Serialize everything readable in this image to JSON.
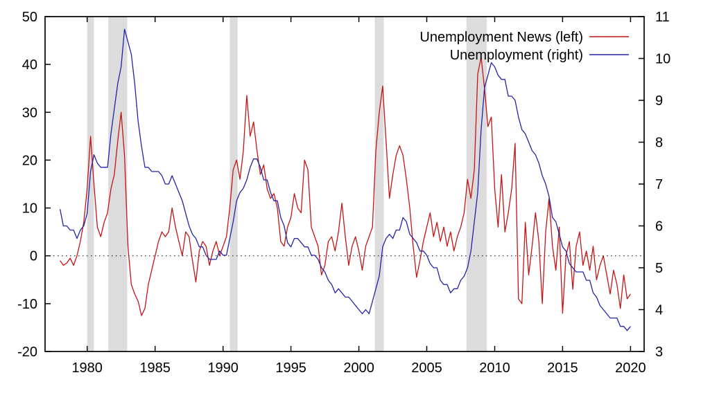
{
  "window": {
    "background": "#ffffff"
  },
  "chart_data": {
    "type": "line",
    "title": "",
    "xlabel": "",
    "ylabel_left": "",
    "ylabel_right": "",
    "grid": false,
    "x_axis": {
      "min": 1976.9,
      "max": 2021.0,
      "ticks": [
        1980,
        1985,
        1990,
        1995,
        2000,
        2005,
        2010,
        2015,
        2020
      ]
    },
    "y_left": {
      "min": -20,
      "max": 50,
      "ticks": [
        -20,
        -10,
        0,
        10,
        20,
        30,
        40,
        50
      ],
      "zero_reference_line": 0
    },
    "y_right": {
      "min": 3,
      "max": 11,
      "ticks": [
        3,
        4,
        5,
        6,
        7,
        8,
        9,
        10,
        11
      ]
    },
    "recession_bands": {
      "color": "#dcdcdc",
      "ranges": [
        [
          1980.0,
          1980.5
        ],
        [
          1981.55,
          1982.95
        ],
        [
          1990.5,
          1991.08
        ],
        [
          2001.17,
          2001.83
        ],
        [
          2007.92,
          2009.42
        ]
      ]
    },
    "x_start": 1978.0,
    "x_step": 0.25,
    "legend": {
      "position": "top-right"
    },
    "series": [
      {
        "name": "Unemployment News (left)",
        "axis": "left",
        "color": "#c41414",
        "values": [
          -1,
          -2,
          -1.5,
          -0.5,
          -2,
          0,
          3,
          7,
          14,
          25,
          15,
          6,
          4,
          7,
          9,
          14,
          17,
          24,
          30,
          21,
          2,
          -6,
          -8,
          -9.5,
          -12.5,
          -11,
          -6,
          -3,
          0,
          3,
          5,
          4,
          5,
          10,
          6,
          3,
          0,
          5,
          4,
          -1,
          -5.5,
          1,
          3,
          2,
          -2,
          1,
          3,
          0,
          2,
          4,
          10,
          18,
          20,
          16,
          22,
          33.5,
          25,
          28,
          22,
          17,
          19,
          14,
          12,
          13,
          10,
          3,
          2,
          6,
          8,
          13,
          10,
          9,
          20,
          18,
          6,
          4,
          2,
          -4,
          -2,
          3,
          4,
          1,
          5,
          11,
          4,
          -2,
          2,
          4,
          1,
          -3,
          2,
          4,
          6,
          22,
          30,
          35.5,
          24,
          12,
          17,
          21,
          23,
          21,
          16,
          10,
          2,
          -4.5,
          -1,
          3,
          6,
          9,
          4,
          7,
          3,
          6,
          2,
          5,
          1,
          4,
          6,
          9,
          16,
          12,
          18,
          38,
          41.5,
          35,
          27,
          29,
          14,
          6,
          17,
          5,
          9,
          14,
          23.5,
          -9,
          -10,
          7,
          -4,
          2,
          9,
          3,
          -10,
          5,
          12,
          2,
          -3,
          6,
          -12,
          0,
          3,
          -7,
          2,
          5,
          -2,
          1,
          -3,
          2,
          -5,
          -2,
          0,
          -4,
          -8,
          -3,
          -6,
          -11,
          -4,
          -9,
          -8
        ]
      },
      {
        "name": "Unemployment (right)",
        "axis": "right",
        "color": "#2222aa",
        "values": [
          6.4,
          6.0,
          6.0,
          5.9,
          5.9,
          5.7,
          5.9,
          6.0,
          6.3,
          7.3,
          7.7,
          7.5,
          7.4,
          7.4,
          7.4,
          8.2,
          8.8,
          9.4,
          9.8,
          10.7,
          10.4,
          10.1,
          9.4,
          8.5,
          7.9,
          7.4,
          7.4,
          7.3,
          7.3,
          7.3,
          7.2,
          7.0,
          7.0,
          7.2,
          7.0,
          6.8,
          6.6,
          6.3,
          6.0,
          5.8,
          5.7,
          5.5,
          5.5,
          5.3,
          5.2,
          5.2,
          5.2,
          5.4,
          5.3,
          5.3,
          5.7,
          6.1,
          6.6,
          6.8,
          6.9,
          7.1,
          7.4,
          7.6,
          7.6,
          7.4,
          7.1,
          7.1,
          6.8,
          6.6,
          6.6,
          6.2,
          6.0,
          5.6,
          5.5,
          5.7,
          5.7,
          5.6,
          5.5,
          5.5,
          5.3,
          5.3,
          5.2,
          5.0,
          4.9,
          4.7,
          4.6,
          4.4,
          4.5,
          4.4,
          4.3,
          4.3,
          4.2,
          4.1,
          4.0,
          3.9,
          4.0,
          3.9,
          4.2,
          4.5,
          4.8,
          5.5,
          5.7,
          5.8,
          5.7,
          5.9,
          5.9,
          6.2,
          6.1,
          5.8,
          5.7,
          5.6,
          5.4,
          5.4,
          5.3,
          5.1,
          5.0,
          5.0,
          4.7,
          4.6,
          4.6,
          4.4,
          4.5,
          4.5,
          4.7,
          4.8,
          5.0,
          5.4,
          6.1,
          6.8,
          8.3,
          9.3,
          9.6,
          9.9,
          9.8,
          9.6,
          9.5,
          9.5,
          9.1,
          9.1,
          9.0,
          8.6,
          8.3,
          8.2,
          8.0,
          7.8,
          7.7,
          7.5,
          7.2,
          7.0,
          6.7,
          6.2,
          6.1,
          5.8,
          5.5,
          5.4,
          5.1,
          5.0,
          4.9,
          4.9,
          4.9,
          4.7,
          4.7,
          4.4,
          4.3,
          4.1,
          4.0,
          3.9,
          3.8,
          3.8,
          3.8,
          3.6,
          3.6,
          3.5,
          3.6
        ]
      }
    ]
  }
}
